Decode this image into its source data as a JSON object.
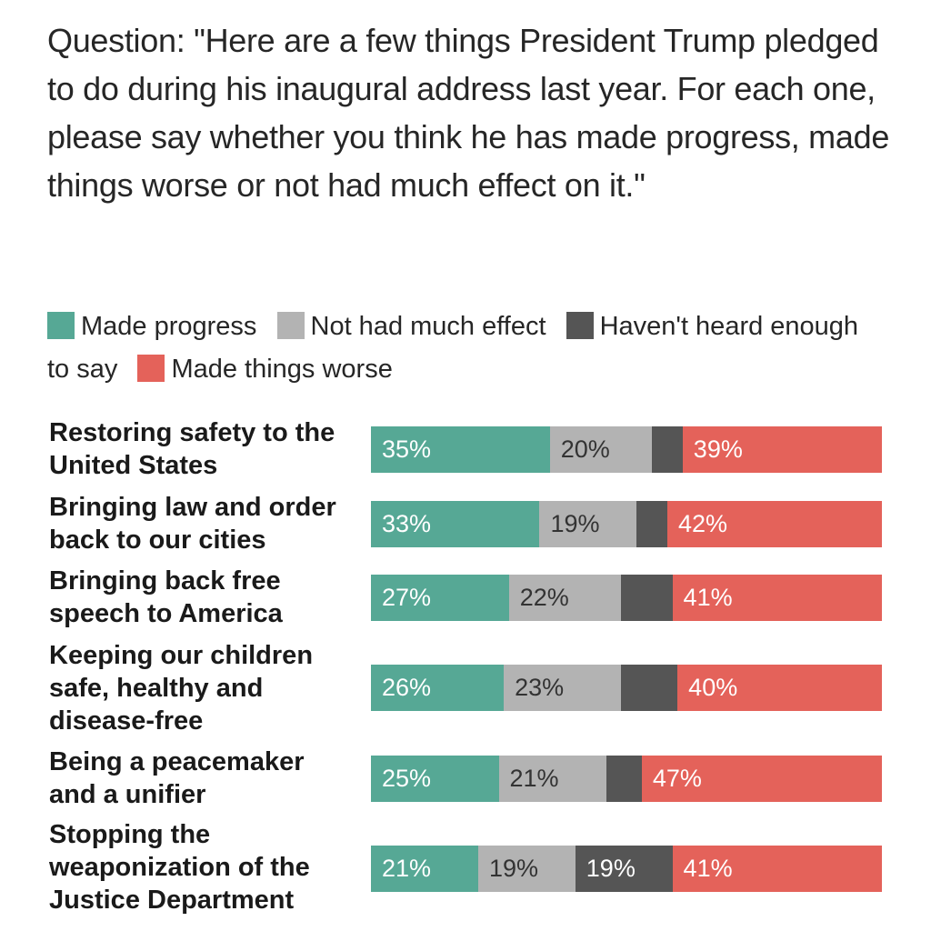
{
  "question": "Question: \"Here are a few things President Trump pledged to do during his inaugural address last year. For each one, please say whether you think he has made progress, made things worse or not had much effect on it.\"",
  "legend": [
    {
      "label": "Made progress",
      "color": "#56a895"
    },
    {
      "label": "Not had much effect",
      "color": "#b3b3b3"
    },
    {
      "label": "Haven't heard enough to say",
      "color": "#555555"
    },
    {
      "label": "Made things worse",
      "color": "#e4625a"
    }
  ],
  "chart_data": {
    "type": "bar",
    "orientation": "horizontal",
    "stacked": true,
    "categories": [
      "Restoring safety to the United States",
      "Bringing law and order back to our cities",
      "Bringing back free speech to America",
      "Keeping our children safe, healthy and disease-free",
      "Being a peacemaker and a unifier",
      "Stopping the weaponization of the Justice Department"
    ],
    "series": [
      {
        "name": "Made progress",
        "color": "#56a895",
        "text_color": "#ffffff",
        "values": [
          35,
          33,
          27,
          26,
          25,
          21
        ],
        "labels": [
          "35%",
          "33%",
          "27%",
          "26%",
          "25%",
          "21%"
        ]
      },
      {
        "name": "Not had much effect",
        "color": "#b3b3b3",
        "text_color": "#333333",
        "values": [
          20,
          19,
          22,
          23,
          21,
          19
        ],
        "labels": [
          "20%",
          "19%",
          "22%",
          "23%",
          "21%",
          "19%"
        ]
      },
      {
        "name": "Haven't heard enough to say",
        "color": "#555555",
        "text_color": "#ffffff",
        "values": [
          6,
          6,
          10,
          11,
          7,
          19
        ],
        "labels": [
          "",
          "",
          "",
          "",
          "",
          "19%"
        ]
      },
      {
        "name": "Made things worse",
        "color": "#e4625a",
        "text_color": "#ffffff",
        "values": [
          39,
          42,
          41,
          40,
          47,
          41
        ],
        "labels": [
          "39%",
          "42%",
          "41%",
          "40%",
          "47%",
          "41%"
        ]
      }
    ],
    "xlim": [
      0,
      100
    ]
  }
}
